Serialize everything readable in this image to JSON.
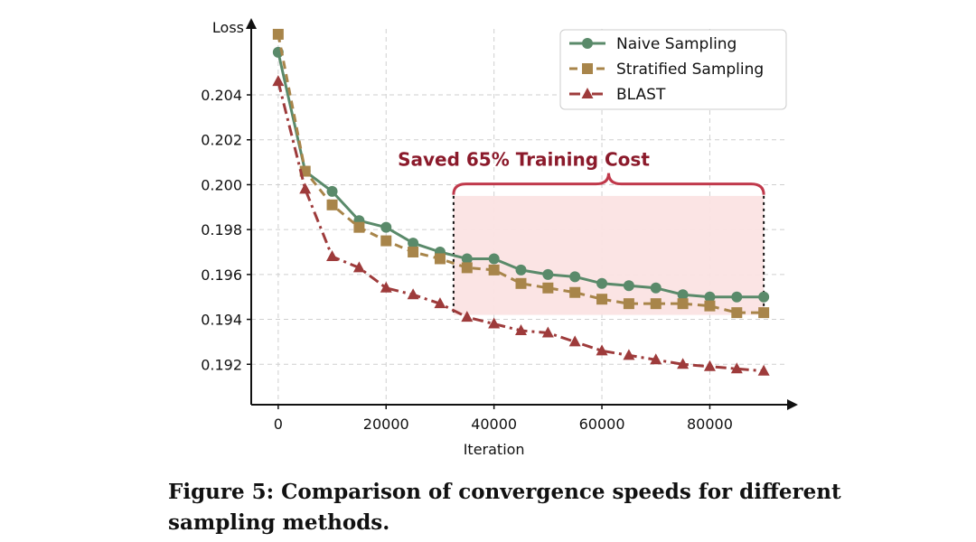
{
  "chart_data": {
    "type": "line",
    "title": "",
    "xlabel": "Iteration",
    "ylabel": "Loss",
    "xlim": [
      -5000,
      95000
    ],
    "ylim": [
      0.1902,
      0.2071
    ],
    "xticks": [
      0,
      20000,
      40000,
      60000,
      80000
    ],
    "yticks": [
      0.192,
      0.194,
      0.196,
      0.198,
      0.2,
      0.202,
      0.204
    ],
    "grid": true,
    "legend_position": "top-right",
    "x": [
      0,
      5000,
      10000,
      15000,
      20000,
      25000,
      30000,
      35000,
      40000,
      45000,
      50000,
      55000,
      60000,
      65000,
      70000,
      75000,
      80000,
      85000,
      90000
    ],
    "series": [
      {
        "name": "Naive Sampling",
        "color": "#5a8a6a",
        "marker": "circle",
        "linestyle": "solid",
        "values": [
          0.2059,
          0.2006,
          0.1997,
          0.1984,
          0.1981,
          0.1974,
          0.197,
          0.1967,
          0.1967,
          0.1962,
          0.196,
          0.1959,
          0.1956,
          0.1955,
          0.1954,
          0.1951,
          0.195,
          0.195,
          0.195
        ]
      },
      {
        "name": "Stratified Sampling",
        "color": "#a8854a",
        "marker": "square",
        "linestyle": "dashed",
        "values": [
          0.2067,
          0.2006,
          0.1991,
          0.1981,
          0.1975,
          0.197,
          0.1967,
          0.1963,
          0.1962,
          0.1956,
          0.1954,
          0.1952,
          0.1949,
          0.1947,
          0.1947,
          0.1947,
          0.1946,
          0.1943,
          0.1943
        ]
      },
      {
        "name": "BLAST",
        "color": "#9e3b3b",
        "marker": "triangle",
        "linestyle": "dashdot",
        "values": [
          0.2046,
          0.1998,
          0.1968,
          0.1963,
          0.1954,
          0.1951,
          0.1947,
          0.1941,
          0.1938,
          0.1935,
          0.1934,
          0.193,
          0.1926,
          0.1924,
          0.1922,
          0.192,
          0.1919,
          0.1918,
          0.1917
        ]
      }
    ],
    "annotation": {
      "text": "Saved 65% Training Cost",
      "color": "#8b1a2b",
      "fill_color": "#fbe3e3",
      "brace_color": "#c0394b",
      "x_start": 32500,
      "x_end": 90000,
      "y_bottom": 0.1942,
      "y_top": 0.1995,
      "brace_y": 0.19955
    }
  },
  "caption": {
    "line1": "Figure 5: Comparison of convergence speeds for different",
    "line2": "sampling methods."
  }
}
